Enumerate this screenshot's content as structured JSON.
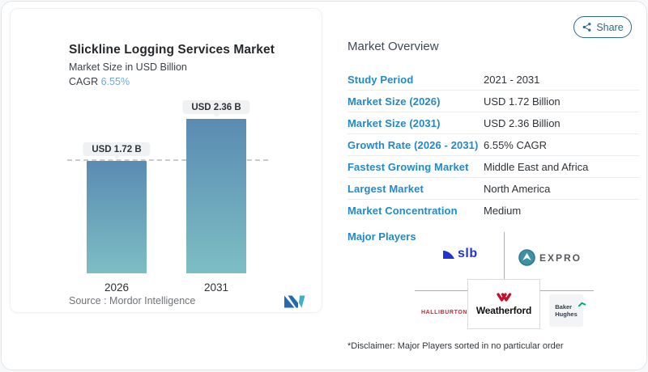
{
  "share": {
    "label": "Share"
  },
  "chart_card": {
    "title": "Slickline Logging Services Market",
    "subtitle": "Market Size in USD Billion",
    "cagr_label": "CAGR",
    "cagr_value": "6.55%",
    "source_label": "Source :",
    "source_value": "Mordor Intelligence"
  },
  "chart_data": {
    "type": "bar",
    "title": "Slickline Logging Services Market",
    "subtitle": "Market Size in USD Billion",
    "categories": [
      "2026",
      "2031"
    ],
    "values": [
      1.72,
      2.36
    ],
    "value_labels": [
      "USD 1.72 B",
      "USD 2.36 B"
    ],
    "unit": "USD Billion",
    "cagr": "6.55%",
    "ylim": [
      0,
      2.36
    ],
    "reference_line": 1.72,
    "grid": false,
    "bar_gradient": [
      "#5a8bb2",
      "#7dbec4"
    ]
  },
  "overview": {
    "heading": "Market Overview",
    "rows": [
      {
        "label": "Study Period",
        "value": "2021 - 2031"
      },
      {
        "label": "Market Size (2026)",
        "value": "USD 1.72 Billion"
      },
      {
        "label": "Market Size (2031)",
        "value": "USD 2.36 Billion"
      },
      {
        "label": "Growth Rate (2026 - 2031)",
        "value": "6.55% CAGR"
      },
      {
        "label": "Fastest Growing Market",
        "value": "Middle East and Africa"
      },
      {
        "label": "Largest Market",
        "value": "North America"
      },
      {
        "label": "Market Concentration",
        "value": "Medium"
      }
    ]
  },
  "major_players": {
    "label": "Major Players",
    "players": [
      {
        "name": "SLB",
        "logo_text": "slb"
      },
      {
        "name": "Expro",
        "logo_text": "EXPRO"
      },
      {
        "name": "Halliburton",
        "logo_text": "HALLIBURTON"
      },
      {
        "name": "Weatherford",
        "logo_text": "Weatherford"
      },
      {
        "name": "Baker Hughes",
        "logo_line1": "Baker",
        "logo_line2": "Hughes"
      }
    ],
    "disclaimer": "*Disclaimer: Major Players sorted in no particular order"
  },
  "colors": {
    "accent_blue": "#2389c9",
    "share_teal": "#2b6b86",
    "cagr_blue": "#6fa9d8",
    "slb_blue": "#2133d1",
    "expro_teal": "#3d91a3",
    "halliburton_red": "#d22630",
    "weatherford_red": "#c8102e",
    "baker_green": "#00a77e",
    "mordor_navy": "#2767b0",
    "mordor_teal": "#3fb0c6"
  }
}
